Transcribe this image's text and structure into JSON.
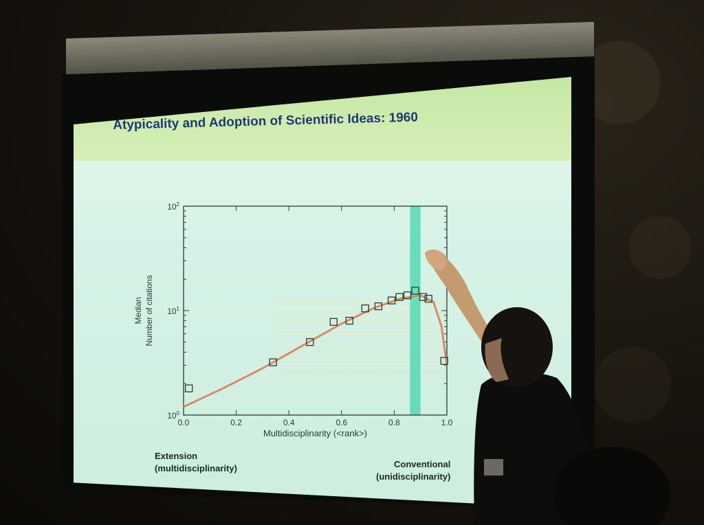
{
  "slide": {
    "title": "Atypicality and Adoption of Scientific Ideas: 1960",
    "label_left_line1": "Extension",
    "label_left_line2": "(multidisciplinarity)",
    "label_right_line1": "Conventional",
    "label_right_line2": "(unidisciplinarity)"
  },
  "colors": {
    "title_band": "#c6e8a4",
    "screen": "#d6f2e6",
    "curve": "#d98a6a",
    "highlight_band": "#43d6b0",
    "title_text": "#1e3a72"
  },
  "chart_data": {
    "type": "scatter",
    "title": "",
    "xlabel": "Multidisciplinarity (<rank>)",
    "ylabel_line1": "Median",
    "ylabel_line2": "Number of citations",
    "x_ticks": [
      "0.0",
      "0.2",
      "0.4",
      "0.6",
      "0.8",
      "1.0"
    ],
    "y_ticks": [
      "10^0",
      "10^1",
      "10^2"
    ],
    "xlim": [
      0,
      1
    ],
    "ylim_log10": [
      0,
      2
    ],
    "y_scale": "log",
    "highlight_x_range": [
      0.86,
      0.9
    ],
    "points": [
      {
        "x": 0.02,
        "y": 1.8
      },
      {
        "x": 0.34,
        "y": 3.2
      },
      {
        "x": 0.48,
        "y": 5.0
      },
      {
        "x": 0.57,
        "y": 7.8
      },
      {
        "x": 0.63,
        "y": 8.0
      },
      {
        "x": 0.69,
        "y": 10.5
      },
      {
        "x": 0.74,
        "y": 11.0
      },
      {
        "x": 0.79,
        "y": 12.5
      },
      {
        "x": 0.82,
        "y": 13.5
      },
      {
        "x": 0.85,
        "y": 14.0
      },
      {
        "x": 0.88,
        "y": 15.5
      },
      {
        "x": 0.91,
        "y": 13.5
      },
      {
        "x": 0.93,
        "y": 13.0
      },
      {
        "x": 0.99,
        "y": 3.3
      }
    ],
    "fit_curve": [
      {
        "x": 0.0,
        "y": 1.2
      },
      {
        "x": 0.15,
        "y": 1.8
      },
      {
        "x": 0.3,
        "y": 2.8
      },
      {
        "x": 0.45,
        "y": 4.6
      },
      {
        "x": 0.6,
        "y": 7.5
      },
      {
        "x": 0.72,
        "y": 10.5
      },
      {
        "x": 0.82,
        "y": 13.0
      },
      {
        "x": 0.9,
        "y": 14.0
      },
      {
        "x": 0.95,
        "y": 12.0
      },
      {
        "x": 0.98,
        "y": 7.0
      },
      {
        "x": 1.0,
        "y": 3.0
      }
    ]
  }
}
